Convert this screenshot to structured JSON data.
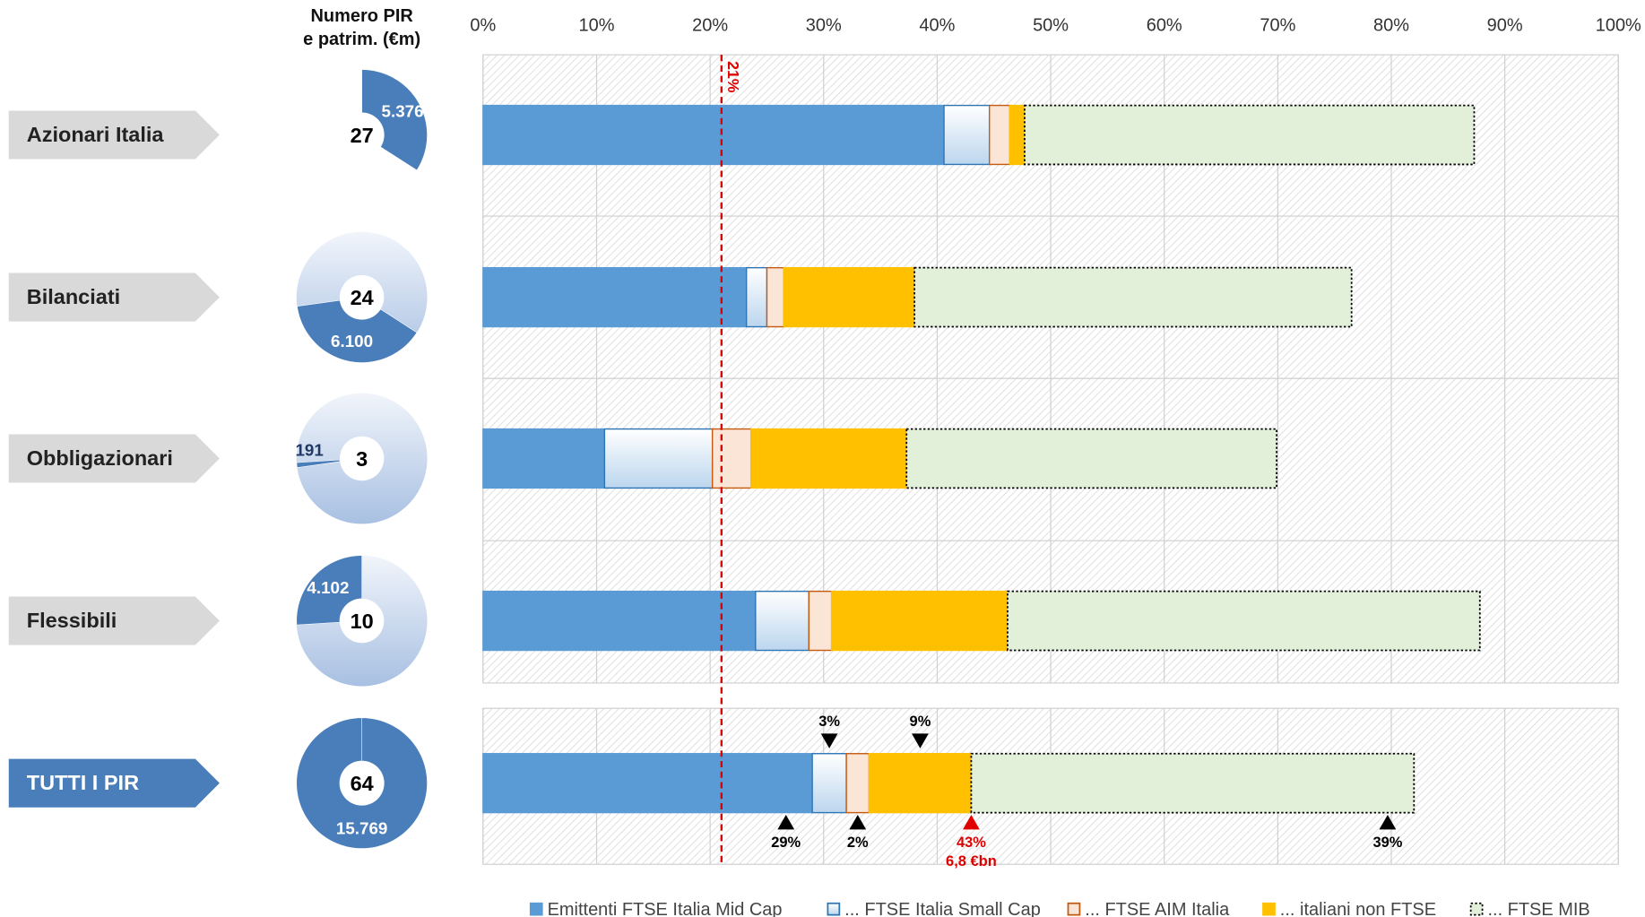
{
  "chart_data": [
    {
      "type": "stacked-bar",
      "categories": [
        "Azionari Italia",
        "Bilanciati",
        "Obbligazionari",
        "Flessibili",
        "TUTTI I PIR"
      ],
      "series": [
        {
          "name": "Emittenti FTSE Italia Mid Cap",
          "color": "#5b9bd5",
          "border": "#5b9bd5",
          "values": [
            40.6,
            23.2,
            10.7,
            24.0,
            29
          ],
          "value_labels": [
            null,
            null,
            null,
            null,
            "29%"
          ],
          "label_side": "below"
        },
        {
          "name": "... FTSE Italia Small Cap",
          "color": "#deebf7",
          "border": "#2e75b6",
          "values": [
            4.0,
            1.8,
            9.5,
            4.7,
            3
          ],
          "value_labels": [
            null,
            null,
            null,
            null,
            "3%"
          ],
          "label_side": "above"
        },
        {
          "name": "... FTSE AIM Italia",
          "color": "#fbe5d6",
          "border": "#c55a11",
          "values": [
            1.8,
            1.5,
            3.4,
            2.0,
            2
          ],
          "value_labels": [
            null,
            null,
            null,
            null,
            "2%"
          ],
          "label_side": "below"
        },
        {
          "name": "... italiani non FTSE",
          "color": "#ffc000",
          "border": "#ffc000",
          "values": [
            1.3,
            11.5,
            13.7,
            15.5,
            9
          ],
          "value_labels": [
            null,
            null,
            null,
            null,
            "9%"
          ],
          "label_side": "above"
        },
        {
          "name": "... FTSE MIB",
          "color": "#e2efd9",
          "border": "#000000",
          "values": [
            39.6,
            38.5,
            32.6,
            41.6,
            39
          ],
          "value_labels": [
            null,
            null,
            null,
            null,
            "39%"
          ],
          "label_side": "below"
        }
      ],
      "xlim": [
        0,
        100
      ],
      "xticks": [
        {
          "value": 0,
          "label": "0%"
        },
        {
          "value": 10,
          "label": "10%"
        },
        {
          "value": 20,
          "label": "20%"
        },
        {
          "value": 30,
          "label": "30%"
        },
        {
          "value": 40,
          "label": "40%"
        },
        {
          "value": 50,
          "label": "50%"
        },
        {
          "value": 60,
          "label": "60%"
        },
        {
          "value": 70,
          "label": "70%"
        },
        {
          "value": 80,
          "label": "80%"
        },
        {
          "value": 90,
          "label": "90%"
        },
        {
          "value": 100,
          "label": "100%"
        }
      ],
      "grid": true,
      "legend": "bottom",
      "reference_line": {
        "value": 21,
        "label": "21%",
        "color": "#e00000"
      },
      "cumulative_marker": {
        "value": 43,
        "label": "43%",
        "note": "6,8 €bn",
        "color": "#e00000"
      }
    },
    {
      "type": "donut",
      "title_lines": [
        "Numero PIR",
        "e patrim. (€m)"
      ],
      "counts": [
        27,
        24,
        3,
        10,
        64
      ],
      "values": [
        5376,
        6100,
        191,
        4102,
        15769
      ],
      "value_labels": [
        "5.376",
        "6.100",
        "191",
        "4.102",
        "15.769"
      ],
      "color": "#4a7ebb"
    }
  ]
}
